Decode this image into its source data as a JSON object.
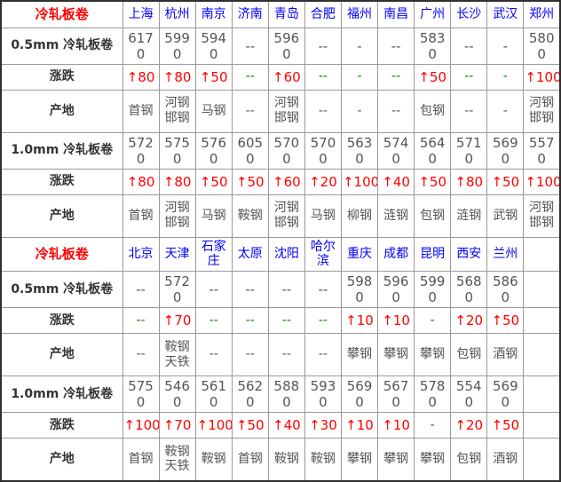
{
  "colors": {
    "section_label": "#ff0000",
    "city_link": "#0000ff",
    "value": "#555555",
    "change_up": "#ff0000",
    "change_flat": "#008000",
    "row_label": "#333333",
    "grid_line": "#999999",
    "outer_border": "#2f2f2f"
  },
  "table": {
    "column_count": 13,
    "label_col_width": 137,
    "sections": [
      {
        "rows": [
          {
            "type": "header",
            "label": "冷轧板卷",
            "cells": [
              "上海",
              "杭州",
              "南京",
              "济南",
              "青岛",
              "合肥",
              "福州",
              "南昌",
              "广州",
              "长沙",
              "武汉",
              "郑州"
            ]
          },
          {
            "type": "price",
            "label": "0.5mm 冷轧板卷",
            "cells": [
              "6170",
              "5990",
              "5940",
              "--",
              "5960",
              "--",
              "-",
              "--",
              "5830",
              "--",
              "-",
              "5800"
            ]
          },
          {
            "type": "change",
            "label": "涨跌",
            "cells": [
              "↑80",
              "↑80",
              "↑50",
              "--",
              "↑60",
              "--",
              "-",
              "--",
              "↑50",
              "--",
              "-",
              "↑100"
            ]
          },
          {
            "type": "origin",
            "label": "产地",
            "cells": [
              "首钢",
              "河钢邯钢",
              "马钢",
              "--",
              "河钢邯钢",
              "--",
              "-",
              "--",
              "包钢",
              "--",
              "-",
              "河钢邯钢"
            ]
          },
          {
            "type": "price",
            "label": "1.0mm 冷轧板卷",
            "cells": [
              "5720",
              "5750",
              "5760",
              "6050",
              "5700",
              "5700",
              "5630",
              "5740",
              "5640",
              "5710",
              "5690",
              "5570"
            ]
          },
          {
            "type": "change",
            "label": "涨跌",
            "cells": [
              "↑80",
              "↑80",
              "↑50",
              "↑50",
              "↑60",
              "↑20",
              "↑100",
              "↑40",
              "↑50",
              "↑80",
              "↑50",
              "↑100"
            ]
          },
          {
            "type": "origin",
            "label": "产地",
            "cells": [
              "首钢",
              "河钢邯钢",
              "马钢",
              "鞍钢",
              "河钢邯钢",
              "马钢",
              "柳钢",
              "涟钢",
              "包钢",
              "涟钢",
              "武钢",
              "河钢邯钢"
            ]
          }
        ]
      },
      {
        "rows": [
          {
            "type": "header",
            "label": "冷轧板卷",
            "cells": [
              "北京",
              "天津",
              "石家庄",
              "太原",
              "沈阳",
              "哈尔滨",
              "重庆",
              "成都",
              "昆明",
              "西安",
              "兰州",
              ""
            ]
          },
          {
            "type": "price",
            "label": "0.5mm 冷轧板卷",
            "cells": [
              "--",
              "5720",
              "--",
              "--",
              "--",
              "--",
              "5980",
              "5960",
              "5990",
              "5680",
              "5860",
              ""
            ]
          },
          {
            "type": "change",
            "label": "涨跌",
            "cells": [
              "--",
              "↑70",
              "--",
              "--",
              "--",
              "--",
              "↑10",
              "↑10",
              "-",
              "↑20",
              "↑50",
              ""
            ]
          },
          {
            "type": "origin",
            "label": "产地",
            "cells": [
              "--",
              "鞍钢天铁",
              "--",
              "--",
              "--",
              "--",
              "攀钢",
              "攀钢",
              "攀钢",
              "包钢",
              "酒钢",
              ""
            ]
          },
          {
            "type": "price",
            "label": "1.0mm 冷轧板卷",
            "cells": [
              "5750",
              "5460",
              "5610",
              "5620",
              "5880",
              "5930",
              "5690",
              "5670",
              "5780",
              "5540",
              "5690",
              ""
            ]
          },
          {
            "type": "change",
            "label": "涨跌",
            "cells": [
              "↑100",
              "↑70",
              "↑100",
              "↑50",
              "↑40",
              "↑30",
              "↑10",
              "↑10",
              "-",
              "↑20",
              "↑50",
              ""
            ]
          },
          {
            "type": "origin",
            "label": "产地",
            "cells": [
              "首钢",
              "鞍钢天铁",
              "鞍钢",
              "首钢",
              "鞍钢",
              "鞍钢",
              "攀钢",
              "攀钢",
              "攀钢",
              "包钢",
              "酒钢",
              ""
            ]
          }
        ]
      }
    ]
  }
}
